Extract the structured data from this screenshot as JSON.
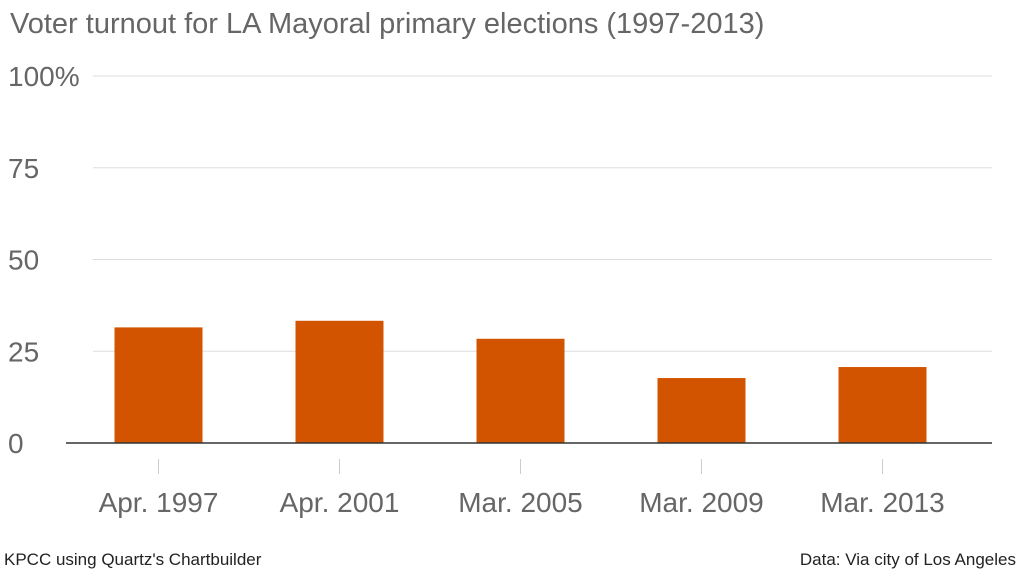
{
  "chart_data": {
    "type": "bar",
    "title": "Voter turnout for LA Mayoral primary elections (1997-2013)",
    "categories": [
      "Apr. 1997",
      "Apr. 2001",
      "Mar. 2005",
      "Mar. 2009",
      "Mar. 2013"
    ],
    "values": [
      31.5,
      33.3,
      28.4,
      17.7,
      20.7
    ],
    "yticks": [
      "0",
      "25",
      "50",
      "75",
      "100%"
    ],
    "ylim": [
      0,
      100
    ],
    "grid": true,
    "colors": {
      "bar": "#d35400",
      "grid": "#dddddd",
      "axis": "#333333",
      "text": "#666666"
    }
  },
  "footer": {
    "source_credit": "KPCC using Quartz's Chartbuilder",
    "data_credit": "Data: Via city of Los Angeles"
  }
}
